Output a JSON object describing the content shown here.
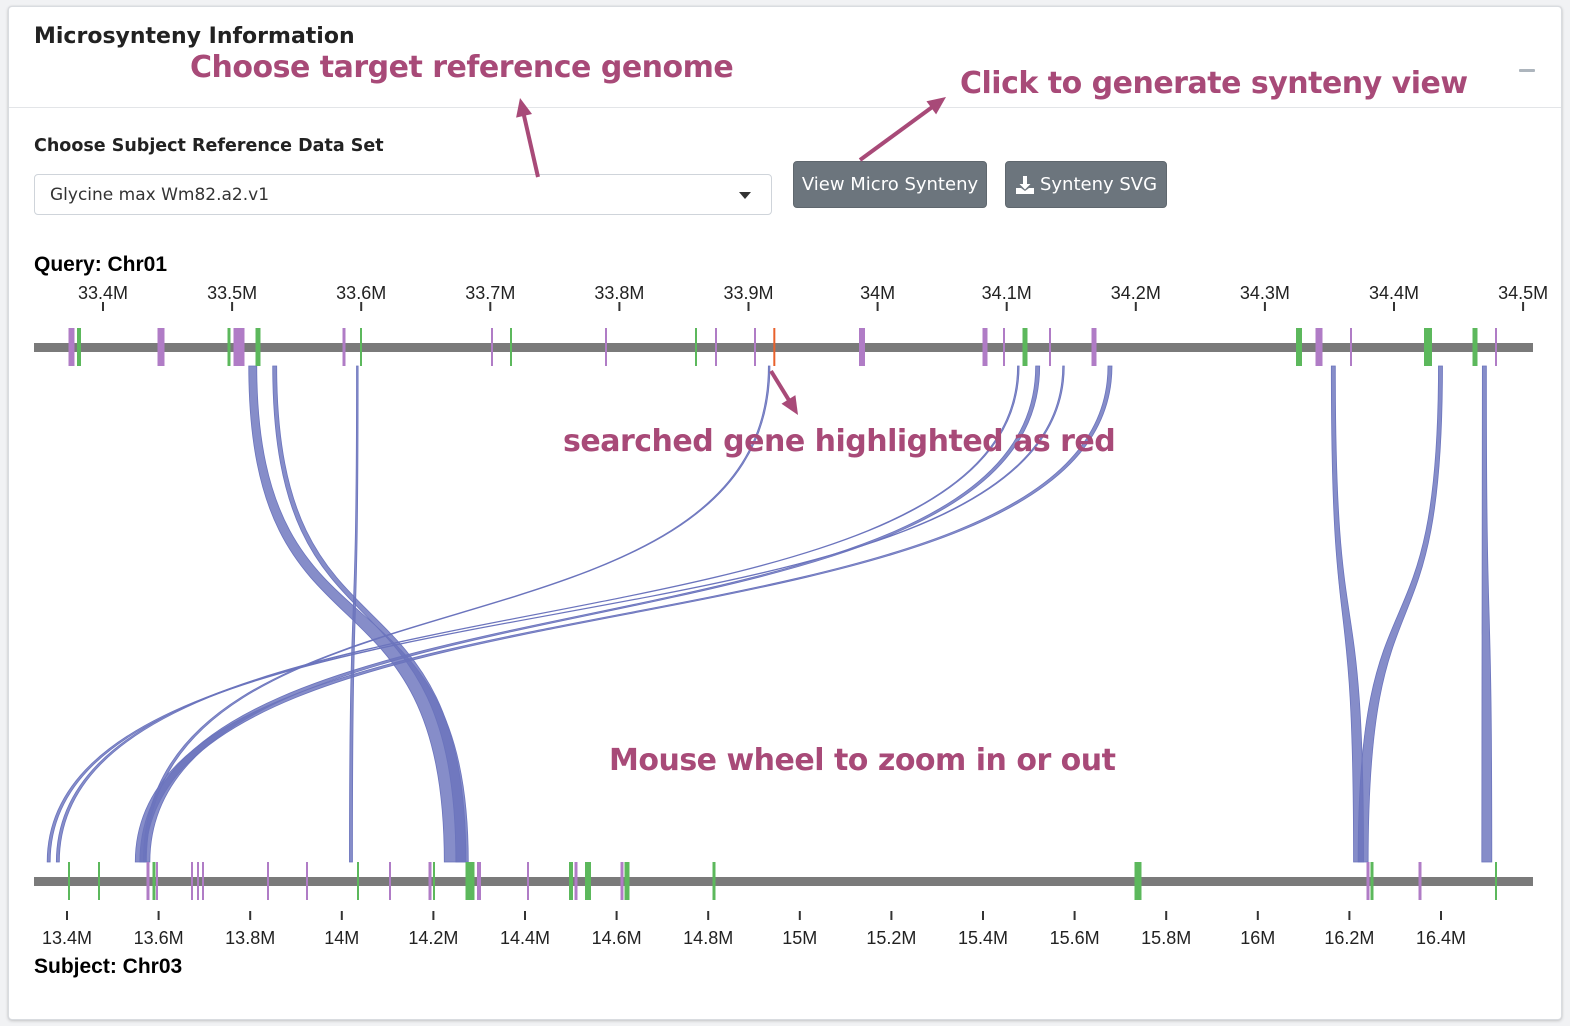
{
  "panel": {
    "title": "Microsynteny Information"
  },
  "form": {
    "label": "Choose Subject Reference Data Set",
    "selected": "Glycine max Wm82.a2.v1",
    "view_button": "View Micro Synteny",
    "svg_button": "Synteny SVG"
  },
  "annotations": {
    "choose_genome": "Choose target reference genome",
    "generate_view": "Click to generate synteny view",
    "searched_gene": "searched gene highlighted as red",
    "zoom": "Mouse wheel to zoom in or out"
  },
  "colors": {
    "gene_green": "#5cb85c",
    "gene_purple": "#b07cc6",
    "link": "#6b74bd",
    "highlight": "#e8612c",
    "chromosome": "#7a7a7a",
    "annotation": "#a84a78",
    "button": "#6c757d"
  },
  "query": {
    "label": "Query: Chr01",
    "ticks": [
      "33.4M",
      "33.5M",
      "33.6M",
      "33.7M",
      "33.8M",
      "33.9M",
      "34M",
      "34.1M",
      "34.2M",
      "34.3M",
      "34.4M",
      "34.5M"
    ],
    "highlighted_gene_mb": 33.92
  },
  "subject": {
    "label": "Subject: Chr03",
    "ticks": [
      "13.4M",
      "13.6M",
      "13.8M",
      "14M",
      "14.2M",
      "14.4M",
      "14.6M",
      "14.8M",
      "15M",
      "15.2M",
      "15.4M",
      "15.6M",
      "15.8M",
      "16M",
      "16.2M",
      "16.4M"
    ]
  },
  "links": [
    {
      "query_mb": 33.516,
      "subject_mb": 14.25,
      "weight": "thick"
    },
    {
      "query_mb": 33.533,
      "subject_mb": 14.26,
      "weight": "medium"
    },
    {
      "query_mb": 33.597,
      "subject_mb": 14.02,
      "weight": "thin"
    },
    {
      "query_mb": 33.916,
      "subject_mb": 13.57,
      "weight": "thin"
    },
    {
      "query_mb": 34.109,
      "subject_mb": 13.38,
      "weight": "thin"
    },
    {
      "query_mb": 34.124,
      "subject_mb": 13.57,
      "weight": "medium"
    },
    {
      "query_mb": 34.144,
      "subject_mb": 13.36,
      "weight": "thin"
    },
    {
      "query_mb": 34.18,
      "subject_mb": 13.56,
      "weight": "medium"
    },
    {
      "query_mb": 34.353,
      "subject_mb": 16.22,
      "weight": "medium"
    },
    {
      "query_mb": 34.436,
      "subject_mb": 16.23,
      "weight": "medium"
    },
    {
      "query_mb": 34.47,
      "subject_mb": 16.5,
      "weight": "medium"
    }
  ]
}
